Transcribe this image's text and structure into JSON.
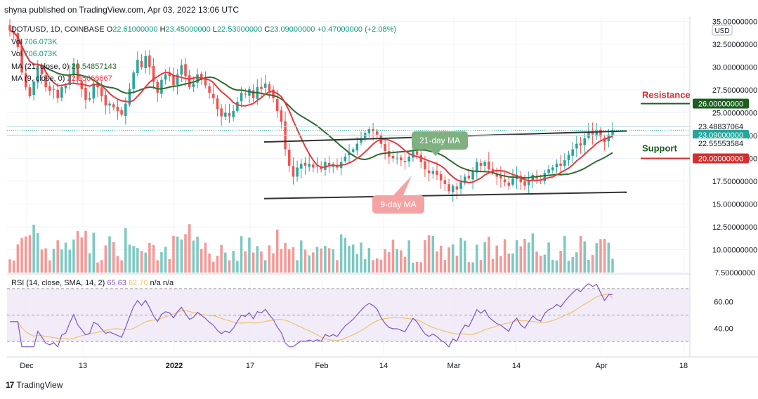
{
  "header": {
    "published": "shyna published on TradingView.com, Apr 03, 2022 13:06 UTC"
  },
  "legend": {
    "symbol": "DOT/USD, 1D, COINBASE",
    "open_label": "O",
    "open": "22.61000000",
    "high_label": "H",
    "high": "23.45000000",
    "low_label": "L",
    "low": "22.53000000",
    "close_label": "C",
    "close": "23.09000000",
    "change": "+0.47000000 (+2.08%)",
    "vol1_label": "Vol",
    "vol1": "706.073K",
    "vol2_label": "Vol",
    "vol2": "706.073K",
    "ma21_label": "MA (21, close, 0)",
    "ma21": "20.54857143",
    "ma9_label": "MA (9, close, 0)",
    "ma9": "22.15666667"
  },
  "rsi_legend": {
    "label": "RSI (14, close, SMA, 14, 2)",
    "rsi": "65.63",
    "sma": "62.70",
    "na": "n/a n/a"
  },
  "colors": {
    "up": "#26a69a",
    "down": "#ef5350",
    "ma9": "#e8383d",
    "ma21": "#2e6b2e",
    "rsi": "#7e57c2",
    "rsi_sma": "#f0c36d",
    "resistance_tag": "#d32f2f",
    "support_tag": "#1b5e20"
  },
  "annotations": {
    "ma21_label": "21-day MA",
    "ma9_label": "9-day MA",
    "resistance": "Resistance",
    "support": "Support"
  },
  "price_axis": {
    "currency": "USD",
    "ticks": [
      "35.00000000",
      "32.50000000",
      "30.00000000",
      "27.50000000",
      "25.00000000",
      "22.50000000",
      "20.00000000",
      "17.50000000",
      "15.00000000",
      "12.50000000",
      "10.00000000",
      "7.50000000"
    ],
    "tags": {
      "resistance_value": "26.00000000",
      "high_value": "23.48837064",
      "last_value": "23.09000000",
      "countdown": "10:53:19",
      "low_value": "22.55553584",
      "support_value": "20.00000000"
    }
  },
  "rsi_axis": {
    "ticks": [
      "60.00",
      "40.00"
    ]
  },
  "time_axis": {
    "ticks": [
      "Dec",
      "13",
      "2022",
      "17",
      "Feb",
      "14",
      "Mar",
      "14",
      "Apr",
      "18"
    ]
  },
  "brand": {
    "name": "TradingView"
  },
  "chart_data": {
    "type": "candlestick",
    "title": "DOT/USD, 1D, COINBASE",
    "xlabel": "",
    "ylabel": "",
    "ylim": [
      7.5,
      35.5
    ],
    "candles_close": [
      34.0,
      33.6,
      32.2,
      29.4,
      27.8,
      26.8,
      28.4,
      30.2,
      29.2,
      27.8,
      27.4,
      27.6,
      26.6,
      27.8,
      28.0,
      29.2,
      30.4,
      28.6,
      27.6,
      26.4,
      26.6,
      28.2,
      27.8,
      26.8,
      25.8,
      26.0,
      25.6,
      25.2,
      24.8,
      26.0,
      27.6,
      29.4,
      30.8,
      30.0,
      31.2,
      30.0,
      28.4,
      27.2,
      28.6,
      29.2,
      29.0,
      28.0,
      29.2,
      30.2,
      29.0,
      27.8,
      28.2,
      29.2,
      28.6,
      28.0,
      27.2,
      26.6,
      25.4,
      24.6,
      25.0,
      24.6,
      25.2,
      26.2,
      27.2,
      27.0,
      27.6,
      26.6,
      27.8,
      27.6,
      28.2,
      27.4,
      26.6,
      25.2,
      24.0,
      21.0,
      19.2,
      18.0,
      19.0,
      19.4,
      19.2,
      19.4,
      19.0,
      19.2,
      18.8,
      19.6,
      19.2,
      19.4,
      19.0,
      19.6,
      20.2,
      20.6,
      21.0,
      21.6,
      22.2,
      22.8,
      23.2,
      23.0,
      22.6,
      21.6,
      20.8,
      20.2,
      20.0,
      20.0,
      19.8,
      19.6,
      20.2,
      20.8,
      20.4,
      19.6,
      18.8,
      18.4,
      18.6,
      18.2,
      17.6,
      17.2,
      16.4,
      17.0,
      16.6,
      17.4,
      18.0,
      17.8,
      18.6,
      19.6,
      19.2,
      19.6,
      18.8,
      18.4,
      18.0,
      17.8,
      17.4,
      17.0,
      17.8,
      18.2,
      17.4,
      17.0,
      17.6,
      18.2,
      17.8,
      17.6,
      18.4,
      18.8,
      19.0,
      19.4,
      19.2,
      19.8,
      20.4,
      21.0,
      21.6,
      21.4,
      22.2,
      22.8,
      22.6,
      23.0,
      22.4,
      21.8,
      22.6,
      23.09
    ],
    "ma9_last": 22.15666667,
    "ma21_last": 20.54857143,
    "resistance_level": 26.0,
    "support_level": 20.0,
    "volume_last": "706.073K",
    "rsi_last": 65.63,
    "rsi_sma_last": 62.7
  }
}
